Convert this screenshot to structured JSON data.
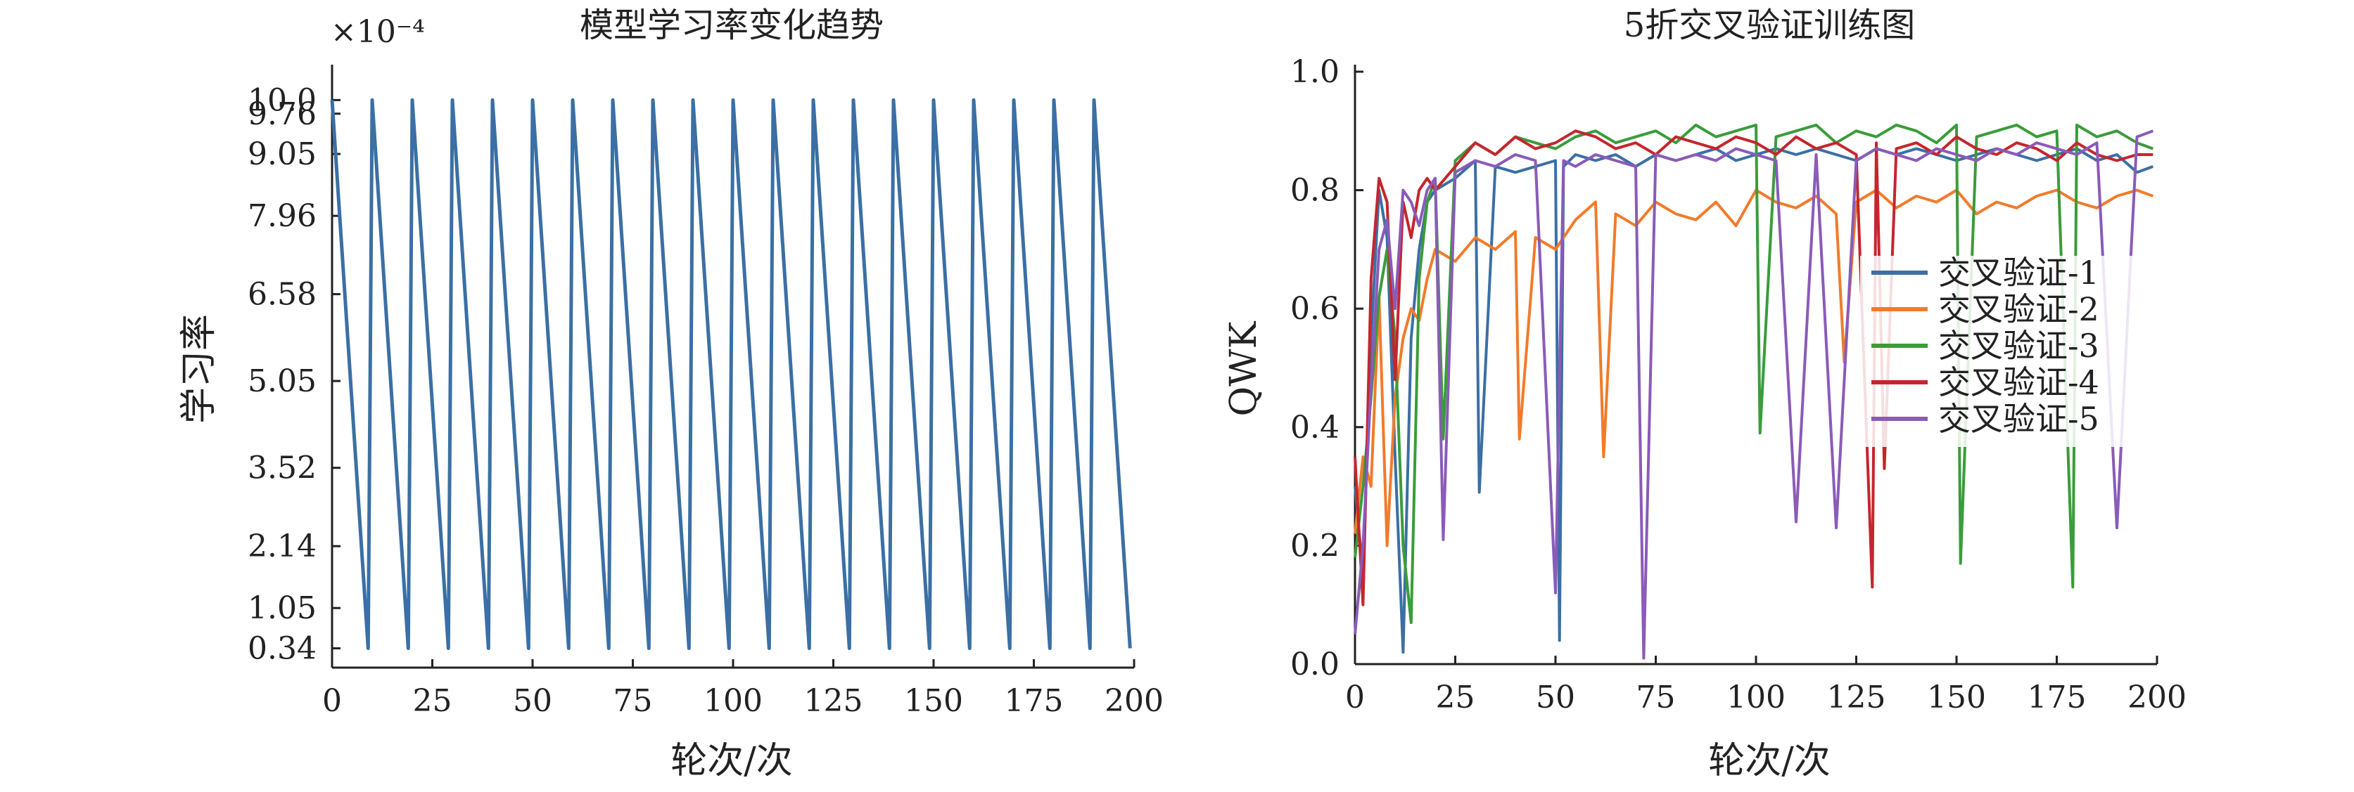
{
  "chart_data": [
    {
      "type": "line",
      "title": "模型学习率变化趋势",
      "xlabel": "轮次/次",
      "ylabel": "学习率",
      "y_multiplier_label": "×10⁻⁴",
      "xlim": [
        0,
        200
      ],
      "ylim": [
        0,
        10.5
      ],
      "x_ticks": [
        0,
        25,
        50,
        75,
        100,
        125,
        150,
        175,
        200
      ],
      "y_ticks": [
        {
          "value": 0.34,
          "label": "0.34"
        },
        {
          "value": 1.05,
          "label": "1.05"
        },
        {
          "value": 2.14,
          "label": "2.14"
        },
        {
          "value": 3.52,
          "label": "3.52"
        },
        {
          "value": 5.05,
          "label": "5.05"
        },
        {
          "value": 6.58,
          "label": "6.58"
        },
        {
          "value": 7.96,
          "label": "7.96"
        },
        {
          "value": 9.05,
          "label": "9.05"
        },
        {
          "value": 9.76,
          "label": "9.76"
        },
        {
          "value": 10.0,
          "label": "10.0"
        }
      ],
      "grid": false,
      "series": [
        {
          "color": "#3b6fa5",
          "cycle_length": 10,
          "max": 10.0,
          "min": 0.34,
          "x": [
            0,
            9,
            10,
            19,
            20,
            29,
            30,
            39,
            40,
            49,
            50,
            59,
            60,
            69,
            70,
            79,
            80,
            89,
            90,
            99,
            100,
            109,
            110,
            119,
            120,
            129,
            130,
            139,
            140,
            149,
            150,
            159,
            160,
            169,
            170,
            179,
            180,
            189,
            190,
            199
          ],
          "y": [
            10.0,
            0.34,
            10.0,
            0.34,
            10.0,
            0.34,
            10.0,
            0.34,
            10.0,
            0.34,
            10.0,
            0.34,
            10.0,
            0.34,
            10.0,
            0.34,
            10.0,
            0.34,
            10.0,
            0.34,
            10.0,
            0.34,
            10.0,
            0.34,
            10.0,
            0.34,
            10.0,
            0.34,
            10.0,
            0.34,
            10.0,
            0.34,
            10.0,
            0.34,
            10.0,
            0.34,
            10.0,
            0.34,
            10.0,
            0.34
          ]
        }
      ]
    },
    {
      "type": "line",
      "title": "5折交叉验证训练图",
      "xlabel": "轮次/次",
      "ylabel": "QWK",
      "xlim": [
        0,
        200
      ],
      "ylim": [
        0,
        1.0
      ],
      "x_ticks": [
        0,
        25,
        50,
        75,
        100,
        125,
        150,
        175,
        200
      ],
      "y_ticks": [
        {
          "value": 0.0,
          "label": "0.0"
        },
        {
          "value": 0.2,
          "label": "0.2"
        },
        {
          "value": 0.4,
          "label": "0.4"
        },
        {
          "value": 0.6,
          "label": "0.6"
        },
        {
          "value": 0.8,
          "label": "0.8"
        },
        {
          "value": 1.0,
          "label": "1.0"
        }
      ],
      "grid": false,
      "legend": "right",
      "series": [
        {
          "name": "交叉验证-1",
          "color": "#3b6fa5",
          "x": [
            0,
            2,
            4,
            6,
            8,
            10,
            12,
            14,
            16,
            18,
            20,
            25,
            30,
            31,
            35,
            40,
            45,
            50,
            51,
            52,
            55,
            60,
            65,
            70,
            75,
            80,
            85,
            90,
            95,
            100,
            105,
            110,
            115,
            120,
            125,
            130,
            135,
            140,
            145,
            150,
            155,
            160,
            165,
            170,
            175,
            180,
            185,
            190,
            195,
            199
          ],
          "y": [
            0.3,
            0.15,
            0.55,
            0.8,
            0.72,
            0.35,
            0.02,
            0.55,
            0.7,
            0.78,
            0.8,
            0.82,
            0.85,
            0.29,
            0.84,
            0.83,
            0.84,
            0.85,
            0.04,
            0.84,
            0.86,
            0.85,
            0.86,
            0.84,
            0.86,
            0.85,
            0.86,
            0.87,
            0.85,
            0.86,
            0.87,
            0.86,
            0.87,
            0.86,
            0.85,
            0.87,
            0.86,
            0.87,
            0.86,
            0.85,
            0.86,
            0.87,
            0.86,
            0.85,
            0.86,
            0.87,
            0.85,
            0.86,
            0.83,
            0.84
          ]
        },
        {
          "name": "交叉验证-2",
          "color": "#f07b2c",
          "x": [
            0,
            2,
            4,
            6,
            8,
            10,
            12,
            14,
            16,
            18,
            20,
            25,
            30,
            35,
            40,
            41,
            45,
            50,
            55,
            60,
            62,
            65,
            70,
            75,
            80,
            85,
            90,
            95,
            100,
            105,
            110,
            115,
            120,
            122,
            125,
            130,
            135,
            140,
            145,
            150,
            155,
            160,
            165,
            170,
            175,
            180,
            185,
            190,
            195,
            199
          ],
          "y": [
            0.22,
            0.35,
            0.3,
            0.62,
            0.2,
            0.45,
            0.55,
            0.6,
            0.58,
            0.65,
            0.7,
            0.68,
            0.72,
            0.7,
            0.73,
            0.38,
            0.72,
            0.7,
            0.75,
            0.78,
            0.35,
            0.76,
            0.74,
            0.78,
            0.76,
            0.75,
            0.78,
            0.74,
            0.8,
            0.78,
            0.77,
            0.79,
            0.76,
            0.51,
            0.78,
            0.8,
            0.77,
            0.79,
            0.78,
            0.8,
            0.76,
            0.78,
            0.77,
            0.79,
            0.8,
            0.78,
            0.77,
            0.79,
            0.8,
            0.79
          ]
        },
        {
          "name": "交叉验证-3",
          "color": "#3a9c3a",
          "x": [
            0,
            2,
            4,
            6,
            8,
            10,
            12,
            14,
            16,
            18,
            20,
            22,
            25,
            30,
            35,
            40,
            45,
            50,
            55,
            60,
            65,
            70,
            75,
            80,
            85,
            90,
            95,
            100,
            101,
            105,
            110,
            115,
            120,
            125,
            130,
            135,
            140,
            145,
            150,
            151,
            155,
            160,
            165,
            170,
            175,
            179,
            180,
            185,
            190,
            195,
            199
          ],
          "y": [
            0.18,
            0.3,
            0.45,
            0.62,
            0.7,
            0.55,
            0.2,
            0.07,
            0.65,
            0.78,
            0.82,
            0.38,
            0.85,
            0.88,
            0.86,
            0.89,
            0.88,
            0.87,
            0.89,
            0.9,
            0.88,
            0.89,
            0.9,
            0.88,
            0.91,
            0.89,
            0.9,
            0.91,
            0.39,
            0.89,
            0.9,
            0.91,
            0.88,
            0.9,
            0.89,
            0.91,
            0.9,
            0.88,
            0.91,
            0.17,
            0.89,
            0.9,
            0.91,
            0.89,
            0.9,
            0.13,
            0.91,
            0.89,
            0.9,
            0.88,
            0.87
          ]
        },
        {
          "name": "交叉验证-4",
          "color": "#c4262e",
          "x": [
            0,
            2,
            4,
            6,
            8,
            10,
            12,
            14,
            16,
            18,
            20,
            25,
            30,
            35,
            40,
            45,
            50,
            55,
            60,
            65,
            70,
            75,
            80,
            85,
            90,
            95,
            100,
            105,
            110,
            115,
            120,
            125,
            129,
            130,
            132,
            135,
            140,
            145,
            150,
            155,
            160,
            165,
            170,
            175,
            180,
            185,
            190,
            195,
            199
          ],
          "y": [
            0.35,
            0.1,
            0.65,
            0.82,
            0.78,
            0.48,
            0.78,
            0.72,
            0.8,
            0.82,
            0.8,
            0.84,
            0.88,
            0.86,
            0.89,
            0.87,
            0.88,
            0.9,
            0.89,
            0.87,
            0.88,
            0.86,
            0.89,
            0.88,
            0.87,
            0.89,
            0.88,
            0.86,
            0.89,
            0.87,
            0.88,
            0.86,
            0.13,
            0.88,
            0.33,
            0.87,
            0.88,
            0.86,
            0.89,
            0.87,
            0.86,
            0.88,
            0.87,
            0.85,
            0.88,
            0.86,
            0.85,
            0.86,
            0.86
          ]
        },
        {
          "name": "交叉验证-5",
          "color": "#8a5bb8",
          "x": [
            0,
            2,
            4,
            6,
            8,
            10,
            12,
            14,
            16,
            18,
            20,
            22,
            25,
            30,
            35,
            40,
            45,
            50,
            52,
            55,
            60,
            65,
            70,
            72,
            75,
            80,
            85,
            90,
            95,
            100,
            105,
            110,
            115,
            120,
            125,
            130,
            135,
            140,
            145,
            150,
            155,
            160,
            165,
            170,
            175,
            180,
            185,
            190,
            195,
            199
          ],
          "y": [
            0.05,
            0.2,
            0.47,
            0.7,
            0.75,
            0.6,
            0.8,
            0.78,
            0.74,
            0.8,
            0.82,
            0.21,
            0.83,
            0.85,
            0.84,
            0.86,
            0.85,
            0.12,
            0.85,
            0.84,
            0.86,
            0.85,
            0.84,
            0.01,
            0.86,
            0.85,
            0.86,
            0.85,
            0.87,
            0.86,
            0.85,
            0.24,
            0.86,
            0.23,
            0.85,
            0.87,
            0.86,
            0.85,
            0.87,
            0.86,
            0.85,
            0.87,
            0.86,
            0.88,
            0.87,
            0.86,
            0.88,
            0.23,
            0.89,
            0.9
          ]
        }
      ]
    }
  ]
}
